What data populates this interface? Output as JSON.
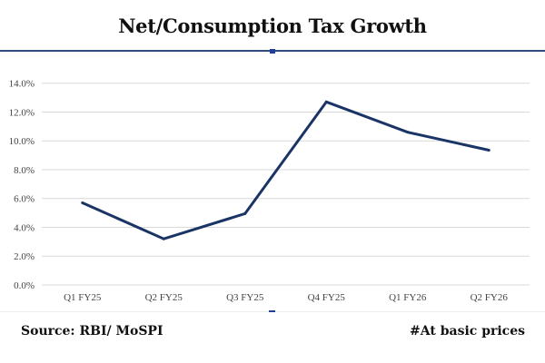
{
  "chart_data": {
    "type": "line",
    "title": "Net/Consumption Tax Growth",
    "xlabel": "",
    "ylabel": "",
    "categories": [
      "Q1 FY25",
      "Q2 FY25",
      "Q3 FY25",
      "Q4 FY25",
      "Q1 FY26",
      "Q2 FY26"
    ],
    "series": [
      {
        "name": "Net/Consumption Tax Growth",
        "values": [
          5.7,
          3.2,
          4.95,
          12.7,
          10.6,
          9.35
        ],
        "color": "#1a3466"
      }
    ],
    "ylim": [
      0,
      14
    ],
    "yticks": [
      0,
      2,
      4,
      6,
      8,
      10,
      12,
      14
    ],
    "ytick_labels": [
      "0.0%",
      "2.0%",
      "4.0%",
      "6.0%",
      "8.0%",
      "10.0%",
      "12.0%",
      "14.0%"
    ],
    "grid": true,
    "legend": "none"
  },
  "footer": {
    "source": "Source: RBI/ MoSPI",
    "note": "#At basic prices"
  },
  "colors": {
    "line": "#1a3466",
    "grid": "#d9d9d9",
    "rule": "#2f4a7d"
  }
}
